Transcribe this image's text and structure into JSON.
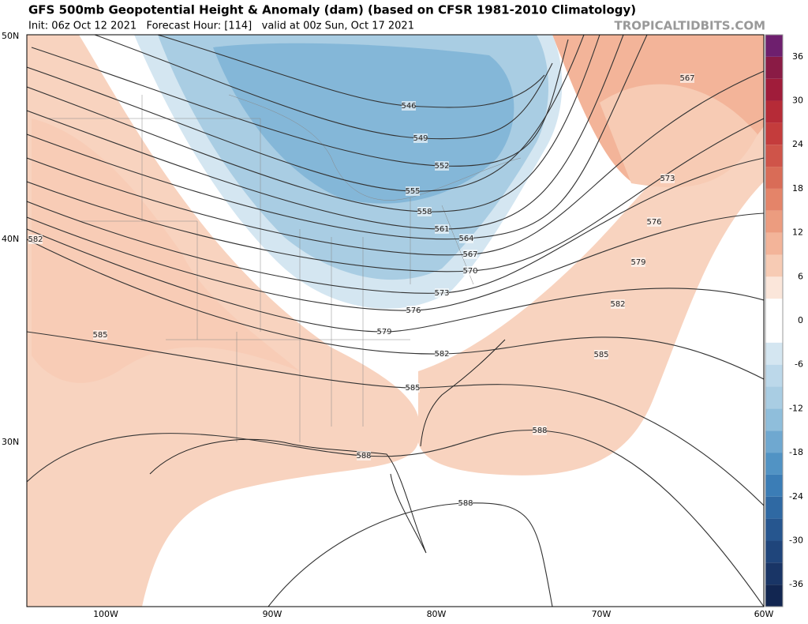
{
  "header": {
    "title": "GFS 500mb Geopotential Height & Anomaly (dam) (based on CFSR 1981-2010 Climatology)",
    "subtitle": "Init: 06z Oct 12 2021   Forecast Hour: [114]   valid at 00z Sun, Oct 17 2021",
    "source": "TROPICALTIDBITS.COM"
  },
  "map": {
    "lat_labels": [
      "50N",
      "40N",
      "30N"
    ],
    "lon_labels": [
      "100W",
      "90W",
      "80W",
      "70W",
      "60W"
    ],
    "contour_labels": [
      546,
      549,
      552,
      555,
      558,
      561,
      564,
      567,
      570,
      573,
      576,
      579,
      582,
      585,
      588,
      588,
      588,
      585,
      582,
      579,
      576,
      573,
      567,
      582,
      585
    ]
  },
  "colorbar": {
    "ticks": [
      36,
      30,
      24,
      18,
      12,
      6,
      0,
      -6,
      -12,
      -18,
      -24,
      -30,
      -36
    ]
  }
}
